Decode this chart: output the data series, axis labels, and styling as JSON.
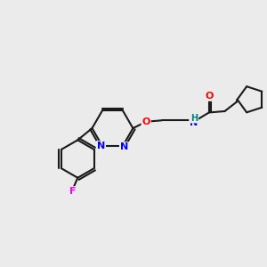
{
  "background_color": "#ebebeb",
  "bond_color": "#1a1a1a",
  "bond_width": 1.5,
  "atom_colors": {
    "N": "#0000ff",
    "O": "#ff0000",
    "F": "#ff00ff",
    "NH": "#008080",
    "C": "#1a1a1a"
  },
  "font_size": 7.5,
  "figsize": [
    3.0,
    3.0
  ],
  "dpi": 100
}
